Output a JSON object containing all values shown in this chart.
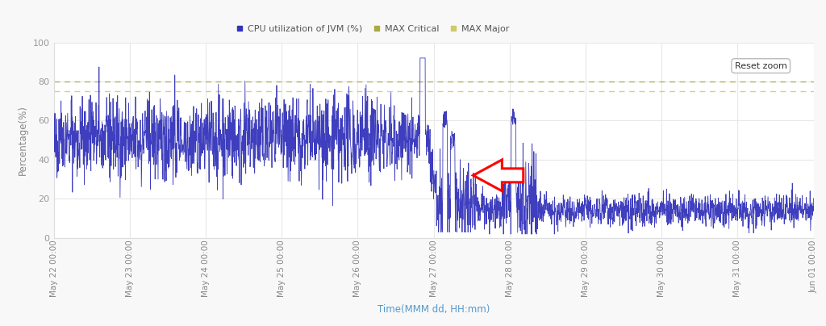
{
  "title": "",
  "xlabel": "Time(MMM dd, HH:mm)",
  "ylabel": "Percentage(%)",
  "ylim": [
    0,
    100
  ],
  "y_ticks": [
    0,
    20,
    40,
    60,
    80,
    100
  ],
  "max_critical": 80,
  "max_major": 75,
  "line_color": "#3333bb",
  "critical_color": "#aaaa44",
  "major_color": "#cccc66",
  "background_color": "#f8f8f8",
  "plot_bg_color": "#ffffff",
  "legend_labels": [
    "CPU utilization of JVM (%)",
    "MAX Critical",
    "MAX Major"
  ],
  "x_tick_labels": [
    "May 22 00:00",
    "May 23 00:00",
    "May 24 00:00",
    "May 25 00:00",
    "May 26 00:00",
    "May 27 00:00",
    "May 28 00:00",
    "May 29 00:00",
    "May 30 00:00",
    "May 31 00:00",
    "Jun 01 00:00"
  ],
  "n_points": 3000,
  "seed": 42
}
